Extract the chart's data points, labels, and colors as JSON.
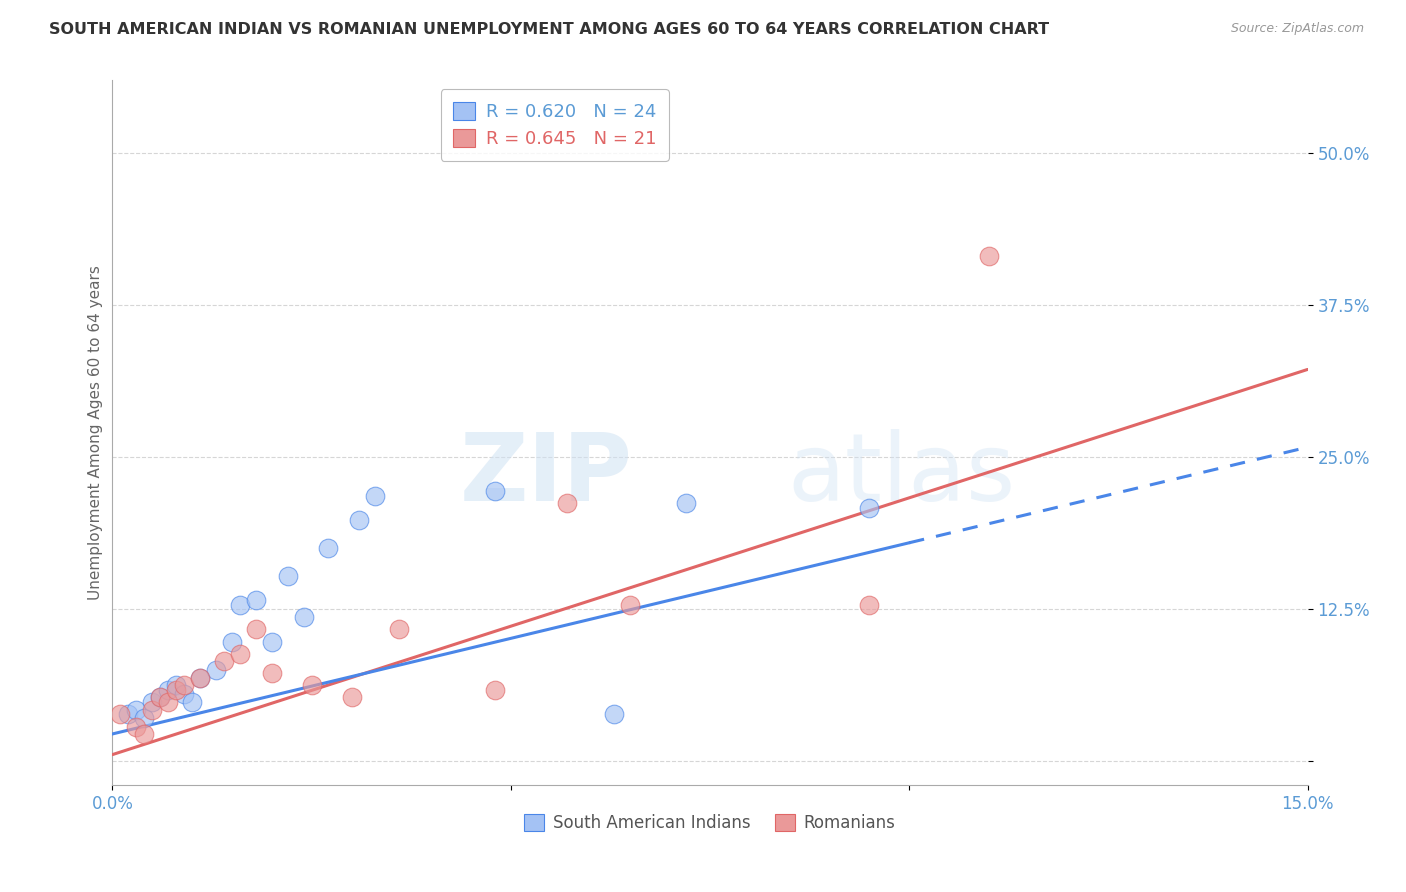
{
  "title": "SOUTH AMERICAN INDIAN VS ROMANIAN UNEMPLOYMENT AMONG AGES 60 TO 64 YEARS CORRELATION CHART",
  "source": "Source: ZipAtlas.com",
  "ylabel": "Unemployment Among Ages 60 to 64 years",
  "xlim": [
    0.0,
    0.15
  ],
  "ylim": [
    -0.02,
    0.56
  ],
  "yticks": [
    0.0,
    0.125,
    0.25,
    0.375,
    0.5
  ],
  "ytick_labels": [
    "",
    "12.5%",
    "25.0%",
    "37.5%",
    "50.0%"
  ],
  "xticks": [
    0.0,
    0.05,
    0.1,
    0.15
  ],
  "xtick_labels": [
    "0.0%",
    "",
    "",
    "15.0%"
  ],
  "legend_r_blue": "R = 0.620",
  "legend_n_blue": "N = 24",
  "legend_r_pink": "R = 0.645",
  "legend_n_pink": "N = 21",
  "legend_label_blue": "South American Indians",
  "legend_label_pink": "Romanians",
  "blue_color": "#a4c2f4",
  "pink_color": "#ea9999",
  "blue_line_color": "#4a86e8",
  "pink_line_color": "#e06666",
  "blue_scatter_x": [
    0.002,
    0.003,
    0.004,
    0.005,
    0.006,
    0.007,
    0.008,
    0.009,
    0.01,
    0.011,
    0.013,
    0.015,
    0.016,
    0.018,
    0.02,
    0.022,
    0.024,
    0.027,
    0.031,
    0.033,
    0.048,
    0.063,
    0.072,
    0.095
  ],
  "blue_scatter_y": [
    0.038,
    0.042,
    0.035,
    0.048,
    0.052,
    0.058,
    0.062,
    0.055,
    0.048,
    0.068,
    0.075,
    0.098,
    0.128,
    0.132,
    0.098,
    0.152,
    0.118,
    0.175,
    0.198,
    0.218,
    0.222,
    0.038,
    0.212,
    0.208
  ],
  "pink_scatter_x": [
    0.001,
    0.003,
    0.004,
    0.005,
    0.006,
    0.007,
    0.008,
    0.009,
    0.011,
    0.014,
    0.016,
    0.018,
    0.02,
    0.025,
    0.03,
    0.036,
    0.048,
    0.057,
    0.065,
    0.095,
    0.11
  ],
  "pink_scatter_y": [
    0.038,
    0.028,
    0.022,
    0.042,
    0.052,
    0.048,
    0.058,
    0.062,
    0.068,
    0.082,
    0.088,
    0.108,
    0.072,
    0.062,
    0.052,
    0.108,
    0.058,
    0.212,
    0.128,
    0.128,
    0.415
  ],
  "blue_line_x": [
    0.0,
    0.15
  ],
  "blue_line_y": [
    0.022,
    0.258
  ],
  "pink_line_x": [
    0.0,
    0.15
  ],
  "pink_line_y": [
    0.005,
    0.322
  ],
  "grid_color": "#cccccc",
  "background_color": "#ffffff",
  "watermark_zip": "ZIP",
  "watermark_atlas": "atlas"
}
